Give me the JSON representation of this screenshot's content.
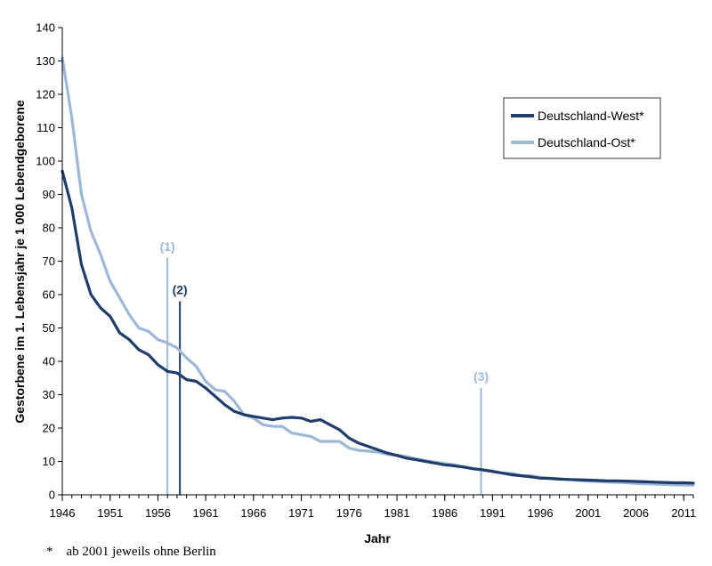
{
  "chart_data": {
    "type": "line",
    "xlabel": "Jahr",
    "ylabel": "Gestorbene im 1. Lebensjahr je 1 000 Lebendgeborene",
    "xlim": [
      1946,
      2012
    ],
    "ylim": [
      0,
      140
    ],
    "y_ticks": [
      0,
      10,
      20,
      30,
      40,
      50,
      60,
      70,
      80,
      90,
      100,
      110,
      120,
      130,
      140
    ],
    "x_ticks": [
      1946,
      1951,
      1956,
      1961,
      1966,
      1971,
      1976,
      1981,
      1986,
      1991,
      1996,
      2001,
      2006,
      2011
    ],
    "grid": false,
    "legend": {
      "placement": "top-right"
    },
    "x": [
      1946,
      1947,
      1948,
      1949,
      1950,
      1951,
      1952,
      1953,
      1954,
      1955,
      1956,
      1957,
      1958,
      1959,
      1960,
      1961,
      1962,
      1963,
      1964,
      1965,
      1966,
      1967,
      1968,
      1969,
      1970,
      1971,
      1972,
      1973,
      1974,
      1975,
      1976,
      1977,
      1978,
      1979,
      1980,
      1981,
      1982,
      1983,
      1984,
      1985,
      1986,
      1987,
      1988,
      1989,
      1990,
      1991,
      1992,
      1993,
      1994,
      1995,
      1996,
      1997,
      1998,
      1999,
      2000,
      2001,
      2002,
      2003,
      2004,
      2005,
      2006,
      2007,
      2008,
      2009,
      2010,
      2011,
      2012
    ],
    "series": [
      {
        "name": "Deutschland-West*",
        "color": "#1f3d6b",
        "values": [
          97,
          86,
          69,
          60,
          56,
          53.5,
          48.5,
          46.5,
          43.5,
          42,
          39,
          37,
          36.5,
          34.5,
          34,
          32,
          29.5,
          27,
          25,
          24,
          23.5,
          23,
          22.5,
          23,
          23.2,
          23,
          22,
          22.5,
          21,
          19.5,
          17,
          15.5,
          14.5,
          13.5,
          12.5,
          11.8,
          11,
          10.5,
          10,
          9.5,
          9,
          8.7,
          8.3,
          7.8,
          7.5,
          7,
          6.5,
          6,
          5.7,
          5.4,
          5,
          4.9,
          4.7,
          4.6,
          4.5,
          4.4,
          4.3,
          4.2,
          4.2,
          4.1,
          4,
          3.9,
          3.8,
          3.7,
          3.6,
          3.6,
          3.5
        ]
      },
      {
        "name": "Deutschland-Ost*",
        "color": "#9db7d8",
        "values": [
          131,
          113,
          90,
          79,
          72,
          64,
          59,
          54,
          50,
          49,
          46.5,
          45.5,
          44,
          41,
          38.5,
          34,
          31.5,
          31,
          28,
          24,
          23,
          21,
          20.5,
          20.5,
          18.5,
          18,
          17.5,
          16,
          16,
          16,
          14,
          13.3,
          13.1,
          12.8,
          12.1,
          11.9,
          11.5,
          10.8,
          10.2,
          9.8,
          9.4,
          9,
          8.4,
          7.9,
          7.3,
          7.2,
          6.5,
          6.4,
          5.8,
          5.7,
          5.2,
          5,
          4.8,
          4.6,
          4.3,
          4.1,
          4,
          3.8,
          3.7,
          3.6,
          3.4,
          3.3,
          3.2,
          3.1,
          3,
          2.9,
          2.9
        ]
      }
    ],
    "annotations": [
      {
        "label": "(1)",
        "x": 1957,
        "y_top": 71,
        "color": "#9db7d8"
      },
      {
        "label": "(2)",
        "x": 1958.3,
        "y_top": 58,
        "color": "#1f3d6b"
      },
      {
        "label": "(3)",
        "x": 1989.8,
        "y_top": 32,
        "color": "#9db7d8"
      }
    ]
  },
  "footnote": "*    ab 2001 jeweils ohne Berlin"
}
